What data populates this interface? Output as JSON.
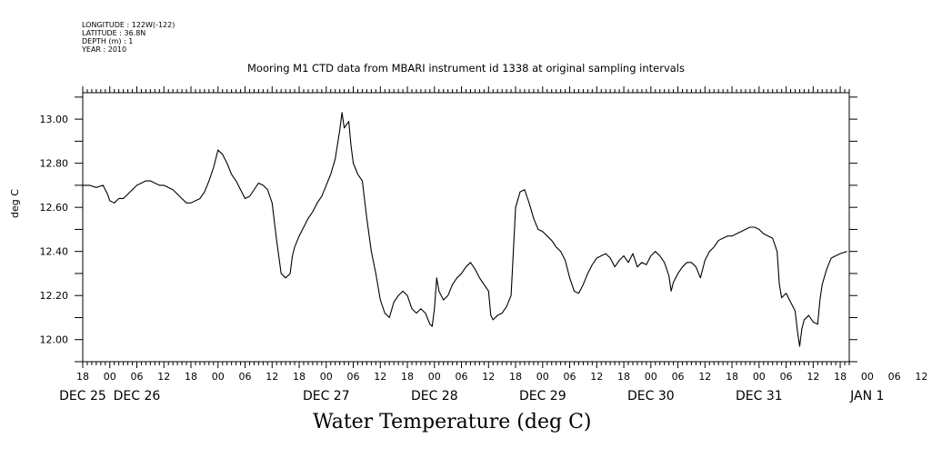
{
  "header": {
    "longitude": "LONGITUDE : 122W(-122)",
    "latitude": "LATITUDE : 36.8N",
    "depth": "DEPTH (m) : 1",
    "year": "YEAR : 2010"
  },
  "chart_data": {
    "type": "line",
    "title": "Mooring M1 CTD data from MBARI instrument id 1338 at original sampling intervals",
    "xlabel": "Water Temperature (deg C)",
    "ylabel": "deg C",
    "x_unit": "hours since DEC 25 00",
    "xlim": [
      -6,
      164
    ],
    "ylim": [
      11.9,
      13.12
    ],
    "yticks": [
      12.0,
      12.2,
      12.4,
      12.6,
      12.8,
      13.0
    ],
    "ytick_labels": [
      "12.00",
      "12.20",
      "12.40",
      "12.60",
      "12.80",
      "13.00"
    ],
    "hour_labels": [
      "18",
      "00",
      "06",
      "12",
      "18",
      "00",
      "06",
      "12",
      "18",
      "00",
      "06",
      "12",
      "18",
      "00",
      "06",
      "12",
      "18",
      "00",
      "06",
      "12",
      "18",
      "00",
      "06",
      "12",
      "18",
      "00",
      "06",
      "12",
      "18",
      "00",
      "06",
      "12"
    ],
    "day_labels": [
      {
        "label": "DEC 25",
        "hour": -6
      },
      {
        "label": "DEC 26",
        "hour": 6
      },
      {
        "label": "DEC 27",
        "hour": 48
      },
      {
        "label": "DEC 28",
        "hour": 72
      },
      {
        "label": "DEC 29",
        "hour": 96
      },
      {
        "label": "DEC 30",
        "hour": 120
      },
      {
        "label": "DEC 31",
        "hour": 144
      },
      {
        "label": "JAN  1",
        "hour": 168
      }
    ],
    "grid": false,
    "series": [
      {
        "color": "#000000",
        "points": [
          [
            -6,
            12.7
          ],
          [
            -4.5,
            12.7
          ],
          [
            -3,
            12.69
          ],
          [
            -1.5,
            12.7
          ],
          [
            -0.5,
            12.66
          ],
          [
            0,
            12.63
          ],
          [
            1,
            12.62
          ],
          [
            2,
            12.64
          ],
          [
            3,
            12.64
          ],
          [
            4,
            12.66
          ],
          [
            6,
            12.7
          ],
          [
            7,
            12.71
          ],
          [
            8,
            12.72
          ],
          [
            9,
            12.72
          ],
          [
            10,
            12.71
          ],
          [
            11,
            12.7
          ],
          [
            12,
            12.7
          ],
          [
            13,
            12.69
          ],
          [
            14,
            12.68
          ],
          [
            15,
            12.66
          ],
          [
            16,
            12.64
          ],
          [
            17,
            12.62
          ],
          [
            18,
            12.62
          ],
          [
            19,
            12.63
          ],
          [
            20,
            12.64
          ],
          [
            21,
            12.67
          ],
          [
            22,
            12.72
          ],
          [
            23,
            12.78
          ],
          [
            24,
            12.86
          ],
          [
            25,
            12.84
          ],
          [
            26,
            12.8
          ],
          [
            27,
            12.75
          ],
          [
            28,
            12.72
          ],
          [
            29,
            12.68
          ],
          [
            30,
            12.64
          ],
          [
            31,
            12.65
          ],
          [
            32,
            12.68
          ],
          [
            33,
            12.71
          ],
          [
            34,
            12.7
          ],
          [
            35,
            12.68
          ],
          [
            36,
            12.62
          ],
          [
            37,
            12.45
          ],
          [
            38,
            12.3
          ],
          [
            39,
            12.28
          ],
          [
            40,
            12.3
          ],
          [
            40.5,
            12.38
          ],
          [
            41,
            12.42
          ],
          [
            42,
            12.47
          ],
          [
            43,
            12.51
          ],
          [
            44,
            12.55
          ],
          [
            45,
            12.58
          ],
          [
            46,
            12.62
          ],
          [
            47,
            12.65
          ],
          [
            48,
            12.7
          ],
          [
            49,
            12.75
          ],
          [
            50,
            12.82
          ],
          [
            51,
            12.95
          ],
          [
            51.5,
            13.03
          ],
          [
            52,
            12.96
          ],
          [
            53,
            12.99
          ],
          [
            53.5,
            12.88
          ],
          [
            54,
            12.8
          ],
          [
            55,
            12.75
          ],
          [
            56,
            12.72
          ],
          [
            57,
            12.55
          ],
          [
            58,
            12.4
          ],
          [
            59,
            12.3
          ],
          [
            60,
            12.18
          ],
          [
            61,
            12.12
          ],
          [
            62,
            12.1
          ],
          [
            63,
            12.17
          ],
          [
            64,
            12.2
          ],
          [
            65,
            12.22
          ],
          [
            66,
            12.2
          ],
          [
            67,
            12.14
          ],
          [
            68,
            12.12
          ],
          [
            69,
            12.14
          ],
          [
            70,
            12.12
          ],
          [
            71,
            12.07
          ],
          [
            71.5,
            12.06
          ],
          [
            72,
            12.14
          ],
          [
            72.5,
            12.28
          ],
          [
            73,
            12.22
          ],
          [
            74,
            12.18
          ],
          [
            75,
            12.2
          ],
          [
            76,
            12.25
          ],
          [
            77,
            12.28
          ],
          [
            78,
            12.3
          ],
          [
            79,
            12.33
          ],
          [
            80,
            12.35
          ],
          [
            81,
            12.32
          ],
          [
            82,
            12.28
          ],
          [
            83,
            12.25
          ],
          [
            84,
            12.22
          ],
          [
            84.5,
            12.11
          ],
          [
            85,
            12.09
          ],
          [
            86,
            12.11
          ],
          [
            87,
            12.12
          ],
          [
            88,
            12.15
          ],
          [
            89,
            12.2
          ],
          [
            89.5,
            12.4
          ],
          [
            90,
            12.6
          ],
          [
            91,
            12.67
          ],
          [
            92,
            12.68
          ],
          [
            93,
            12.62
          ],
          [
            94,
            12.55
          ],
          [
            95,
            12.5
          ],
          [
            96,
            12.49
          ],
          [
            97,
            12.47
          ],
          [
            98,
            12.45
          ],
          [
            99,
            12.42
          ],
          [
            100,
            12.4
          ],
          [
            101,
            12.36
          ],
          [
            102,
            12.28
          ],
          [
            103,
            12.22
          ],
          [
            104,
            12.21
          ],
          [
            105,
            12.25
          ],
          [
            106,
            12.3
          ],
          [
            107,
            12.34
          ],
          [
            108,
            12.37
          ],
          [
            109,
            12.38
          ],
          [
            110,
            12.39
          ],
          [
            111,
            12.37
          ],
          [
            112,
            12.33
          ],
          [
            113,
            12.36
          ],
          [
            114,
            12.38
          ],
          [
            115,
            12.35
          ],
          [
            116,
            12.39
          ],
          [
            117,
            12.33
          ],
          [
            118,
            12.35
          ],
          [
            119,
            12.34
          ],
          [
            120,
            12.38
          ],
          [
            121,
            12.4
          ],
          [
            122,
            12.38
          ],
          [
            123,
            12.35
          ],
          [
            124,
            12.29
          ],
          [
            124.5,
            12.22
          ],
          [
            125,
            12.26
          ],
          [
            126,
            12.3
          ],
          [
            127,
            12.33
          ],
          [
            128,
            12.35
          ],
          [
            129,
            12.35
          ],
          [
            130,
            12.33
          ],
          [
            131,
            12.28
          ],
          [
            132,
            12.36
          ],
          [
            133,
            12.4
          ],
          [
            134,
            12.42
          ],
          [
            135,
            12.45
          ],
          [
            136,
            12.46
          ],
          [
            137,
            12.47
          ],
          [
            138,
            12.47
          ],
          [
            139,
            12.48
          ],
          [
            140,
            12.49
          ],
          [
            141,
            12.5
          ],
          [
            142,
            12.51
          ],
          [
            143,
            12.51
          ],
          [
            144,
            12.5
          ],
          [
            145,
            12.48
          ],
          [
            146,
            12.47
          ],
          [
            147,
            12.46
          ],
          [
            148,
            12.4
          ],
          [
            148.5,
            12.25
          ],
          [
            149,
            12.19
          ],
          [
            150,
            12.21
          ],
          [
            151,
            12.17
          ],
          [
            152,
            12.13
          ],
          [
            152.5,
            12.04
          ],
          [
            153,
            11.97
          ],
          [
            153.5,
            12.05
          ],
          [
            154,
            12.09
          ],
          [
            155,
            12.11
          ],
          [
            156,
            12.08
          ],
          [
            157,
            12.07
          ],
          [
            157.5,
            12.18
          ],
          [
            158,
            12.25
          ],
          [
            159,
            12.32
          ],
          [
            160,
            12.37
          ],
          [
            161,
            12.38
          ],
          [
            162,
            12.39
          ],
          [
            163.5,
            12.4
          ]
        ]
      }
    ]
  }
}
